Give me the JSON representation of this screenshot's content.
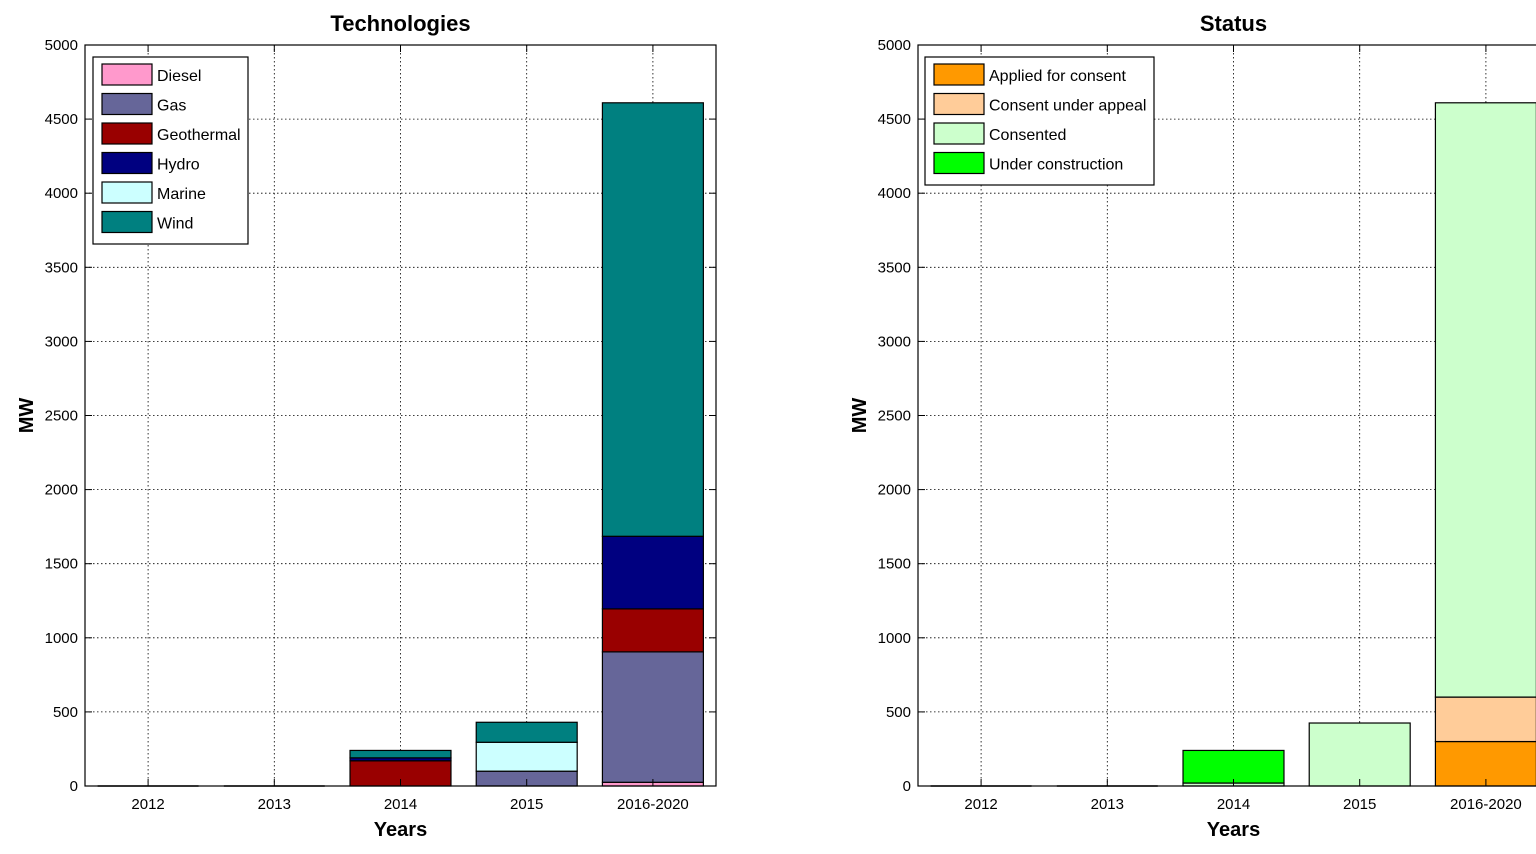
{
  "chart_data": [
    {
      "type": "bar",
      "stacked": true,
      "title": "Technologies",
      "xlabel": "Years",
      "ylabel": "MW",
      "ylim": [
        0,
        5000
      ],
      "yticks": [
        0,
        500,
        1000,
        1500,
        2000,
        2500,
        3000,
        3500,
        4000,
        4500,
        5000
      ],
      "grid": true,
      "legend_position": "top-left",
      "categories": [
        "2012",
        "2013",
        "2014",
        "2015",
        "2016-2020"
      ],
      "series": [
        {
          "name": "Diesel",
          "color": "#ff99cc",
          "values": [
            0,
            0,
            0,
            0,
            25
          ]
        },
        {
          "name": "Gas",
          "color": "#666699",
          "values": [
            0,
            0,
            0,
            100,
            880
          ]
        },
        {
          "name": "Geothermal",
          "color": "#990000",
          "values": [
            0,
            0,
            170,
            0,
            290
          ]
        },
        {
          "name": "Hydro",
          "color": "#000080",
          "values": [
            0,
            0,
            20,
            0,
            490
          ]
        },
        {
          "name": "Marine",
          "color": "#ccffff",
          "values": [
            0,
            0,
            0,
            195,
            0
          ]
        },
        {
          "name": "Wind",
          "color": "#008080",
          "values": [
            0,
            0,
            50,
            135,
            2925
          ]
        }
      ]
    },
    {
      "type": "bar",
      "stacked": true,
      "title": "Status",
      "xlabel": "Years",
      "ylabel": "MW",
      "ylim": [
        0,
        5000
      ],
      "yticks": [
        0,
        500,
        1000,
        1500,
        2000,
        2500,
        3000,
        3500,
        4000,
        4500,
        5000
      ],
      "grid": true,
      "legend_position": "top-left",
      "categories": [
        "2012",
        "2013",
        "2014",
        "2015",
        "2016-2020"
      ],
      "series": [
        {
          "name": "Applied for consent",
          "color": "#ff9900",
          "values": [
            0,
            0,
            0,
            0,
            300
          ]
        },
        {
          "name": "Consent under appeal",
          "color": "#ffcc99",
          "values": [
            0,
            0,
            0,
            0,
            300
          ]
        },
        {
          "name": "Consented",
          "color": "#ccffcc",
          "values": [
            0,
            0,
            20,
            425,
            4010
          ]
        },
        {
          "name": "Under construction",
          "color": "#00ff00",
          "values": [
            0,
            0,
            220,
            0,
            0
          ]
        }
      ]
    }
  ]
}
